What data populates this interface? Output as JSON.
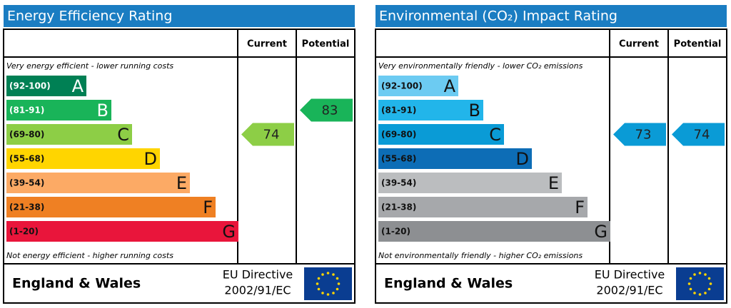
{
  "panels": [
    {
      "title": "Energy Efficiency Rating",
      "columns": [
        "Current",
        "Potential"
      ],
      "top_note": "Very energy efficient - lower running costs",
      "bottom_note": "Not energy efficient - higher running costs",
      "bands": [
        {
          "range": "(92-100)",
          "letter": "A",
          "color": "#008054"
        },
        {
          "range": "(81-91)",
          "letter": "B",
          "color": "#19b459"
        },
        {
          "range": "(69-80)",
          "letter": "C",
          "color": "#8dce46"
        },
        {
          "range": "(55-68)",
          "letter": "D",
          "color": "#ffd500"
        },
        {
          "range": "(39-54)",
          "letter": "E",
          "color": "#fcaa65"
        },
        {
          "range": "(21-38)",
          "letter": "F",
          "color": "#ef8023"
        },
        {
          "range": "(1-20)",
          "letter": "G",
          "color": "#e9153b"
        }
      ],
      "current": 74,
      "potential": 83,
      "footer": "England & Wales",
      "directive": [
        "EU Directive",
        "2002/91/EC"
      ]
    },
    {
      "title": "Environmental (CO₂) Impact Rating",
      "columns": [
        "Current",
        "Potential"
      ],
      "top_note": "Very environmentally friendly - lower CO₂ emissions",
      "bottom_note": "Not environmentally friendly - higher CO₂ emissions",
      "bands": [
        {
          "range": "(92-100)",
          "letter": "A",
          "color": "#6ccbf2"
        },
        {
          "range": "(81-91)",
          "letter": "B",
          "color": "#22b5ea"
        },
        {
          "range": "(69-80)",
          "letter": "C",
          "color": "#0a9bd6"
        },
        {
          "range": "(55-68)",
          "letter": "D",
          "color": "#0d6db6"
        },
        {
          "range": "(39-54)",
          "letter": "E",
          "color": "#bbbdbf"
        },
        {
          "range": "(21-38)",
          "letter": "F",
          "color": "#a6a8ab"
        },
        {
          "range": "(1-20)",
          "letter": "G",
          "color": "#8d8f92"
        }
      ],
      "current": 73,
      "potential": 74,
      "footer": "England & Wales",
      "directive": [
        "EU Directive",
        "2002/91/EC"
      ]
    }
  ]
}
